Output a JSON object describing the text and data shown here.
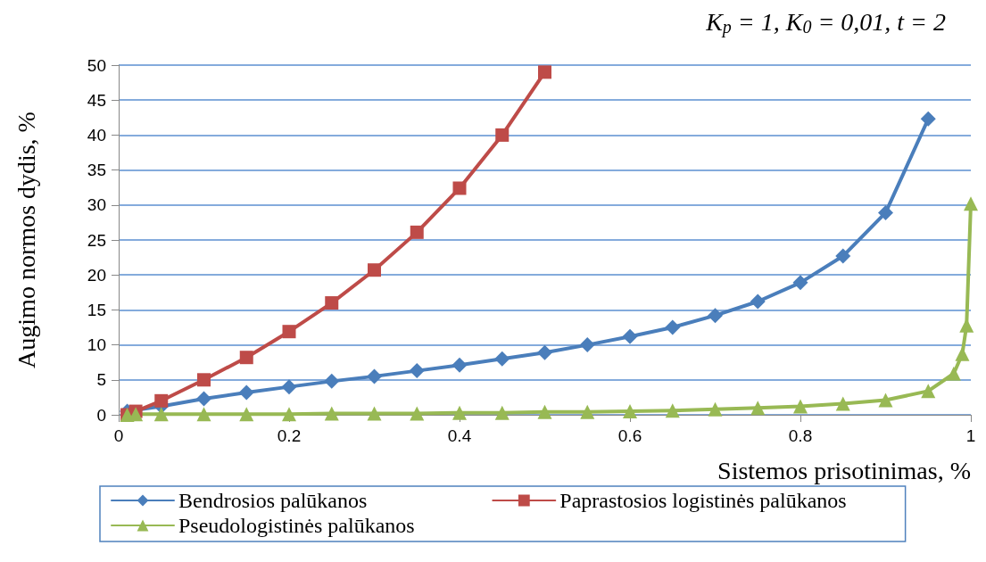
{
  "chart_data": {
    "type": "line",
    "xlabel": "Sistemos prisotinimas, %",
    "ylabel": "Augimo normos dydis, %",
    "annotations": [
      "K$_{p}$ = 1, K$_{0}$ = 0,01, t = 2"
    ],
    "xlim": [
      0,
      1
    ],
    "xticks": [
      0,
      0.2,
      0.4,
      0.6,
      0.8,
      1
    ],
    "ylim": [
      0,
      50
    ],
    "yticks": [
      0,
      5,
      10,
      15,
      20,
      25,
      30,
      35,
      40,
      45,
      50
    ],
    "grid": "y",
    "legend": "bottom",
    "series": [
      {
        "name": "Bendrosios palūkanos",
        "color": "#4a7ebb",
        "marker": "diamond",
        "x": [
          0.01,
          0.05,
          0.1,
          0.15,
          0.2,
          0.25,
          0.3,
          0.35,
          0.4,
          0.45,
          0.5,
          0.55,
          0.6,
          0.65,
          0.7,
          0.75,
          0.8,
          0.85,
          0.9,
          0.95
        ],
        "values": [
          0.5,
          1.2,
          2.3,
          3.2,
          4.0,
          4.8,
          5.5,
          6.3,
          7.1,
          8.0,
          8.9,
          10.0,
          11.2,
          12.5,
          14.2,
          16.2,
          18.9,
          22.7,
          28.9,
          42.3
        ]
      },
      {
        "name": "Paprastosios logistinės palūkanos",
        "color": "#be4b48",
        "marker": "square",
        "x": [
          0.01,
          0.02,
          0.05,
          0.1,
          0.15,
          0.2,
          0.25,
          0.3,
          0.35,
          0.4,
          0.45,
          0.5
        ],
        "values": [
          0,
          0.5,
          2.0,
          5.0,
          8.2,
          11.9,
          16.0,
          20.7,
          26.1,
          32.4,
          40.0,
          49.0
        ]
      },
      {
        "name": "Pseudologistinės palūkanos",
        "color": "#98b954",
        "marker": "triangle",
        "x": [
          0.01,
          0.02,
          0.05,
          0.1,
          0.15,
          0.2,
          0.25,
          0.3,
          0.35,
          0.4,
          0.45,
          0.5,
          0.55,
          0.6,
          0.65,
          0.7,
          0.75,
          0.8,
          0.85,
          0.9,
          0.95,
          0.98,
          0.99,
          0.995,
          1
        ],
        "values": [
          0,
          0.1,
          0.1,
          0.1,
          0.1,
          0.1,
          0.2,
          0.2,
          0.2,
          0.3,
          0.3,
          0.4,
          0.4,
          0.5,
          0.6,
          0.8,
          1.0,
          1.2,
          1.6,
          2.1,
          3.4,
          5.9,
          8.7,
          12.8,
          30.2
        ]
      }
    ]
  }
}
